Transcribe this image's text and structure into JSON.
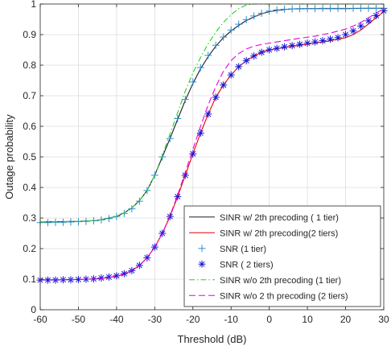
{
  "chart_data": {
    "type": "line",
    "title": "",
    "xlabel": "Threshold (dB)",
    "ylabel": "Outage probability",
    "xlim": [
      -60,
      30
    ],
    "ylim": [
      0,
      1
    ],
    "xticks": [
      -60,
      -50,
      -40,
      -30,
      -20,
      -10,
      0,
      10,
      20,
      30
    ],
    "yticks": [
      0,
      0.1,
      0.2,
      0.3,
      0.4,
      0.5,
      0.6,
      0.7,
      0.8,
      0.9,
      1
    ],
    "grid": true,
    "legend_position": "bottom-right",
    "series": [
      {
        "name": "SINR  w/ 2th precoding ( 1 tier)",
        "style": "solid",
        "color": "#1a1a2e",
        "marker": "none",
        "x": [
          -60,
          -55,
          -50,
          -45,
          -40,
          -38,
          -36,
          -34,
          -32,
          -30,
          -28,
          -26,
          -24,
          -22,
          -20,
          -18,
          -16,
          -14,
          -12,
          -10,
          -8,
          -6,
          -4,
          -2,
          0,
          2,
          4,
          6,
          10,
          15,
          20,
          25,
          30
        ],
        "y": [
          0.287,
          0.288,
          0.289,
          0.292,
          0.305,
          0.317,
          0.333,
          0.357,
          0.39,
          0.44,
          0.5,
          0.56,
          0.623,
          0.685,
          0.74,
          0.788,
          0.828,
          0.862,
          0.89,
          0.912,
          0.93,
          0.946,
          0.958,
          0.968,
          0.975,
          0.979,
          0.982,
          0.984,
          0.985,
          0.985,
          0.985,
          0.986,
          0.986
        ]
      },
      {
        "name": "SINR w/ 2th precoding(2 tiers)",
        "style": "solid",
        "color": "#e8000b",
        "marker": "none",
        "x": [
          -60,
          -55,
          -50,
          -45,
          -40,
          -38,
          -36,
          -34,
          -32,
          -30,
          -28,
          -26,
          -24,
          -22,
          -20,
          -18,
          -16,
          -14,
          -12,
          -10,
          -8,
          -6,
          -4,
          -2,
          0,
          4,
          8,
          12,
          16,
          20,
          22,
          24,
          26,
          28,
          30
        ],
        "y": [
          0.098,
          0.098,
          0.099,
          0.101,
          0.109,
          0.117,
          0.128,
          0.145,
          0.17,
          0.205,
          0.25,
          0.305,
          0.37,
          0.44,
          0.51,
          0.578,
          0.64,
          0.695,
          0.735,
          0.768,
          0.795,
          0.815,
          0.83,
          0.842,
          0.85,
          0.858,
          0.865,
          0.872,
          0.88,
          0.89,
          0.9,
          0.915,
          0.935,
          0.955,
          0.975
        ]
      },
      {
        "name": "SNR (1 tier)",
        "style": "none",
        "color": "#2f8fce",
        "marker": "plus",
        "x": [
          -60,
          -58,
          -56,
          -54,
          -52,
          -50,
          -48,
          -46,
          -44,
          -42,
          -40,
          -38,
          -36,
          -34,
          -32,
          -30,
          -28,
          -26,
          -24,
          -22,
          -20,
          -18,
          -16,
          -14,
          -12,
          -10,
          -8,
          -6,
          -4,
          -2,
          0,
          2,
          4,
          6,
          8,
          10,
          12,
          14,
          16,
          18,
          20,
          22,
          24,
          26,
          28,
          30
        ],
        "y": [
          0.285,
          0.285,
          0.286,
          0.286,
          0.287,
          0.288,
          0.289,
          0.291,
          0.294,
          0.298,
          0.305,
          0.315,
          0.33,
          0.355,
          0.39,
          0.44,
          0.5,
          0.56,
          0.625,
          0.688,
          0.745,
          0.792,
          0.832,
          0.865,
          0.892,
          0.915,
          0.934,
          0.949,
          0.961,
          0.97,
          0.977,
          0.981,
          0.983,
          0.984,
          0.985,
          0.985,
          0.985,
          0.986,
          0.986,
          0.986,
          0.986,
          0.986,
          0.986,
          0.986,
          0.986,
          0.986
        ]
      },
      {
        "name": "SNR ( 2 tiers)",
        "style": "none",
        "color": "#1515d6",
        "marker": "asterisk",
        "x": [
          -60,
          -58,
          -56,
          -54,
          -52,
          -50,
          -48,
          -46,
          -44,
          -42,
          -40,
          -38,
          -36,
          -34,
          -32,
          -30,
          -28,
          -26,
          -24,
          -22,
          -20,
          -18,
          -16,
          -14,
          -12,
          -10,
          -8,
          -6,
          -4,
          -2,
          0,
          2,
          4,
          6,
          8,
          10,
          12,
          14,
          16,
          18,
          20,
          22,
          24,
          26,
          28,
          30
        ],
        "y": [
          0.097,
          0.097,
          0.097,
          0.098,
          0.098,
          0.099,
          0.1,
          0.101,
          0.104,
          0.107,
          0.111,
          0.118,
          0.128,
          0.145,
          0.17,
          0.205,
          0.25,
          0.305,
          0.37,
          0.44,
          0.51,
          0.578,
          0.64,
          0.695,
          0.735,
          0.768,
          0.795,
          0.815,
          0.83,
          0.842,
          0.85,
          0.855,
          0.86,
          0.864,
          0.868,
          0.872,
          0.876,
          0.88,
          0.885,
          0.89,
          0.9,
          0.912,
          0.928,
          0.945,
          0.962,
          0.978
        ]
      },
      {
        "name": "SINR w/o 2th precoding (1 tier)",
        "style": "dashdot",
        "color": "#22d422",
        "marker": "none",
        "x": [
          -60,
          -55,
          -50,
          -45,
          -40,
          -38,
          -36,
          -34,
          -32,
          -30,
          -28,
          -26,
          -24,
          -22,
          -20,
          -18,
          -16,
          -14,
          -12,
          -10,
          -8,
          -6,
          -4,
          -2,
          0,
          5,
          10,
          15,
          20,
          25,
          30
        ],
        "y": [
          0.287,
          0.288,
          0.289,
          0.292,
          0.305,
          0.317,
          0.333,
          0.357,
          0.39,
          0.44,
          0.505,
          0.575,
          0.645,
          0.715,
          0.775,
          0.825,
          0.87,
          0.908,
          0.94,
          0.965,
          0.985,
          0.997,
          1.0,
          1.0,
          1.0,
          1.0,
          1.0,
          1.0,
          1.0,
          1.0,
          1.0
        ]
      },
      {
        "name": "SINR  w/o 2 th precoding (2 tiers)",
        "style": "dashed",
        "color": "#e600e6",
        "marker": "none",
        "x": [
          -60,
          -55,
          -50,
          -45,
          -40,
          -38,
          -36,
          -34,
          -32,
          -30,
          -28,
          -26,
          -24,
          -22,
          -20,
          -18,
          -16,
          -14,
          -12,
          -10,
          -8,
          -6,
          -4,
          -2,
          0,
          4,
          8,
          12,
          16,
          20,
          22,
          24,
          26,
          28,
          30
        ],
        "y": [
          0.098,
          0.098,
          0.099,
          0.101,
          0.109,
          0.117,
          0.128,
          0.145,
          0.17,
          0.205,
          0.25,
          0.308,
          0.375,
          0.45,
          0.525,
          0.6,
          0.67,
          0.73,
          0.78,
          0.815,
          0.838,
          0.853,
          0.862,
          0.868,
          0.872,
          0.88,
          0.888,
          0.895,
          0.905,
          0.918,
          0.928,
          0.94,
          0.955,
          0.97,
          0.985
        ]
      }
    ]
  }
}
